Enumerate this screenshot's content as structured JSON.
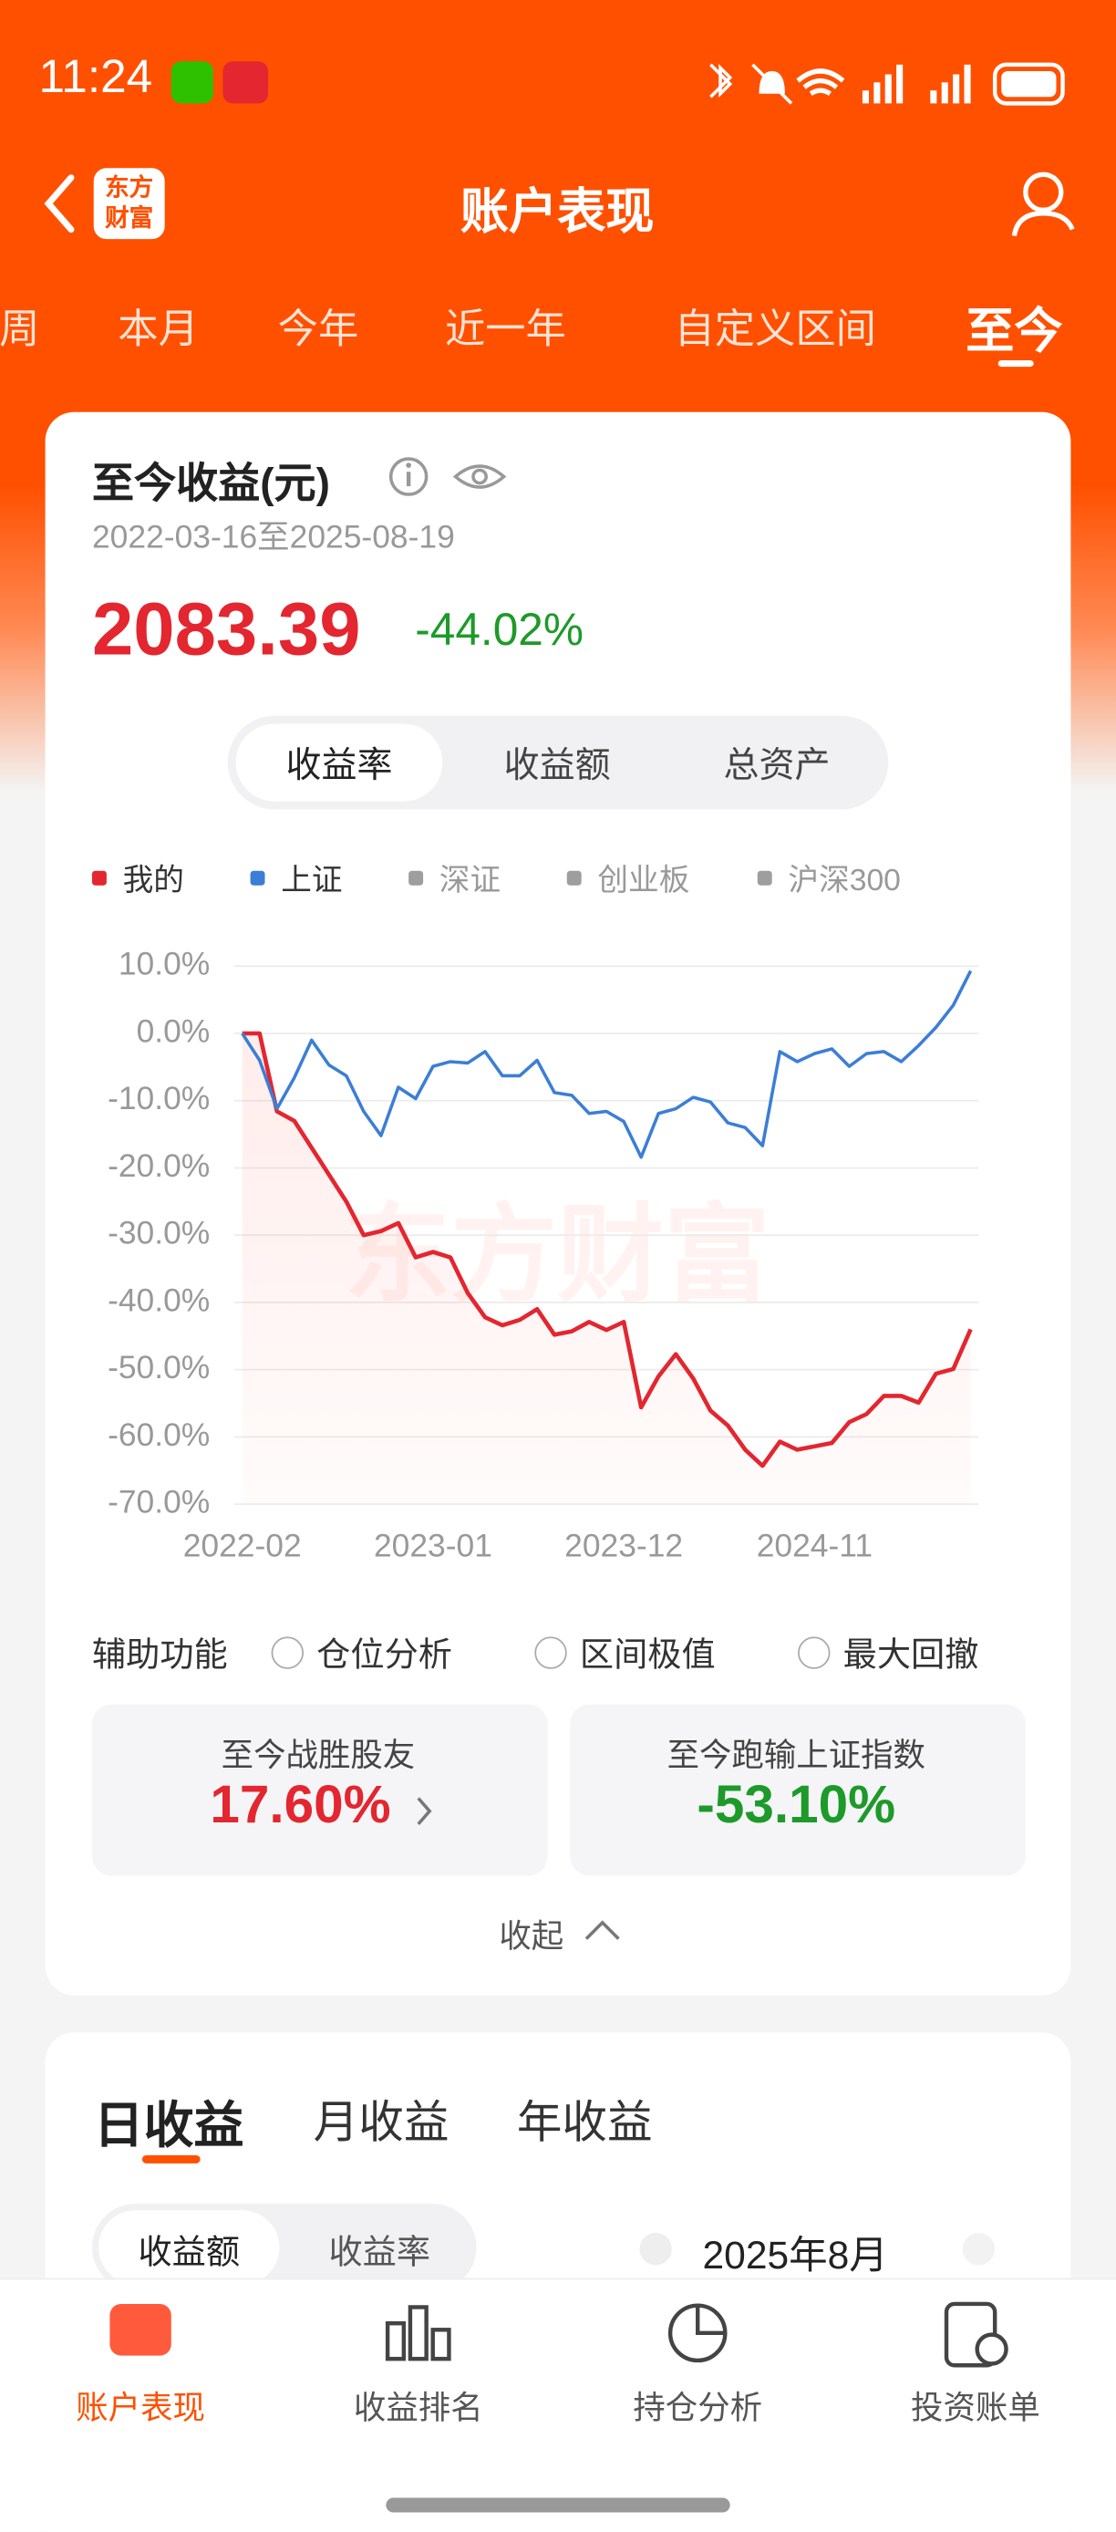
{
  "status_bar": {
    "time": "11:24"
  },
  "header": {
    "logo_lines": [
      "东方",
      "财富"
    ],
    "title": "账户表现"
  },
  "tabs": {
    "items": [
      "周",
      "本月",
      "今年",
      "近一年",
      "自定义区间",
      "至今"
    ],
    "active": 5
  },
  "summary": {
    "title": "至今收益(元)",
    "date_range": "2022-03-16至2025-08-19",
    "amount": "2083.39",
    "rate": "-44.02%",
    "segments": [
      "收益率",
      "收益额",
      "总资产"
    ],
    "active_segment": 0
  },
  "chart_data": {
    "type": "line",
    "watermark": "东方财富",
    "categories": [
      "2022-02",
      null,
      null,
      null,
      null,
      null,
      null,
      null,
      null,
      null,
      null,
      "2023-01",
      null,
      null,
      null,
      null,
      null,
      null,
      null,
      null,
      null,
      null,
      "2023-12",
      null,
      null,
      null,
      null,
      null,
      null,
      null,
      null,
      null,
      null,
      "2024-11",
      null,
      null,
      null,
      null,
      null,
      null,
      null,
      null,
      null
    ],
    "series": [
      {
        "name": "我的",
        "color": "#e3262f",
        "values": [
          0,
          0,
          -11.6,
          -13,
          -17,
          -21,
          -25,
          -30,
          -29.4,
          -28.2,
          -33.3,
          -32.5,
          -33.3,
          -38.6,
          -42.2,
          -43.4,
          -42.6,
          -41,
          -44.8,
          -44.3,
          -42.9,
          -44.1,
          -42.9,
          -55.6,
          -51,
          -47.7,
          -51.3,
          -56.1,
          -58.3,
          -61.9,
          -64.3,
          -60.7,
          -61.9,
          -61.4,
          -60.9,
          -57.8,
          -56.6,
          -53.9,
          -53.9,
          -54.9,
          -50.6,
          -49.9,
          -44
        ]
      },
      {
        "name": "上证",
        "color": "#3b7ed6",
        "values": [
          0,
          -4,
          -11.2,
          -6.6,
          -1,
          -4.7,
          -6.3,
          -11.6,
          -15.2,
          -8,
          -9.7,
          -4.9,
          -4.2,
          -4.4,
          -2.7,
          -6.3,
          -6.3,
          -4,
          -8.8,
          -9.2,
          -11.9,
          -11.6,
          -13.1,
          -18.4,
          -11.9,
          -11.2,
          -9.5,
          -10.2,
          -13.3,
          -14,
          -16.7,
          -2.7,
          -4.2,
          -3,
          -2.3,
          -4.9,
          -3,
          -2.7,
          -4.2,
          -1.8,
          0.9,
          4.2,
          9.3
        ]
      }
    ],
    "inactive_legend": [
      {
        "name": "深证",
        "color": "#9e9e9e"
      },
      {
        "name": "创业板",
        "color": "#9e9e9e"
      },
      {
        "name": "沪深300",
        "color": "#9e9e9e"
      }
    ],
    "ylim": [
      -70,
      10
    ],
    "yticks": [
      {
        "value": 10,
        "label": "10.0%"
      },
      {
        "value": 0,
        "label": "0.0%"
      },
      {
        "value": -10,
        "label": "-10.0%"
      },
      {
        "value": -20,
        "label": "-20.0%"
      },
      {
        "value": -30,
        "label": "-30.0%"
      },
      {
        "value": -40,
        "label": "-40.0%"
      },
      {
        "value": -50,
        "label": "-50.0%"
      },
      {
        "value": -60,
        "label": "-60.0%"
      },
      {
        "value": -70,
        "label": "-70.0%"
      }
    ],
    "grid": true
  },
  "tools": {
    "label": "辅助功能",
    "options": [
      "仓位分析",
      "区间极值",
      "最大回撤"
    ]
  },
  "stats": [
    {
      "label": "至今战胜股友",
      "value": "17.60%"
    },
    {
      "label": "至今跑输上证指数",
      "value": "-53.10%"
    }
  ],
  "collapse": "收起",
  "daily": {
    "tabs": [
      "日收益",
      "月收益",
      "年收益"
    ],
    "toggle": [
      "收益额",
      "收益率"
    ],
    "month": "2025年8月"
  },
  "bottom_nav": [
    "账户表现",
    "收益排名",
    "持仓分析",
    "投资账单"
  ]
}
